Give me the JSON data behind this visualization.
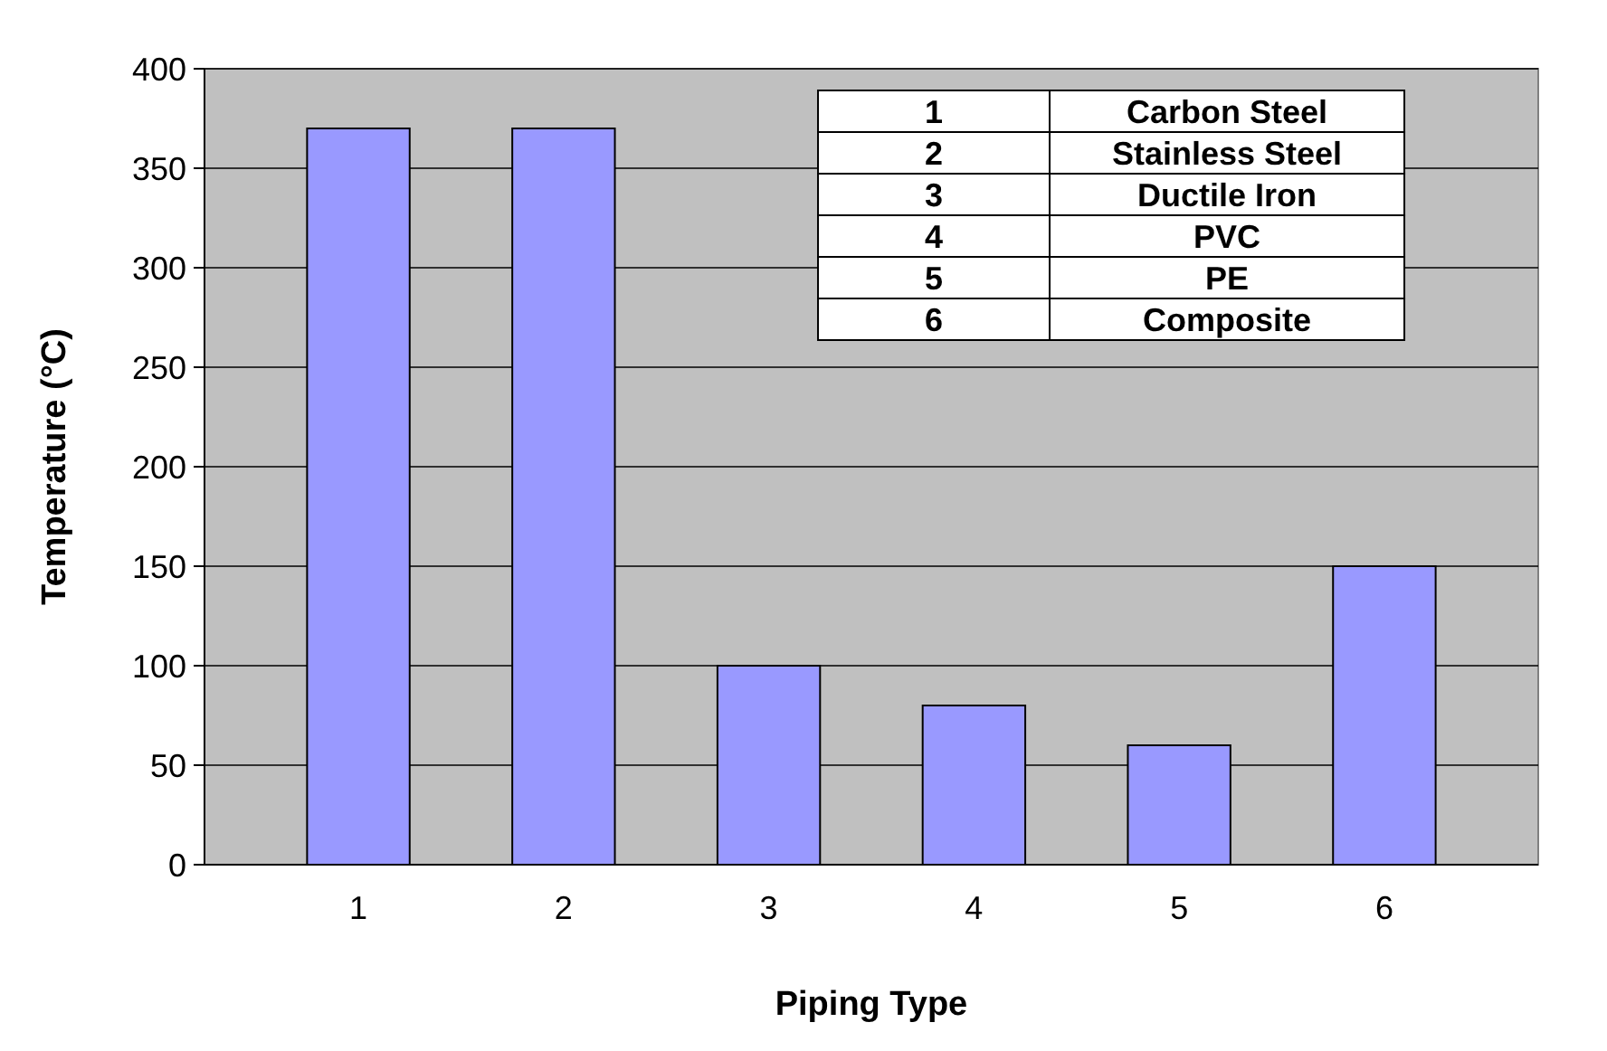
{
  "chart_data": {
    "type": "bar",
    "xlabel": "Piping Type",
    "ylabel": "Temperature (°C)",
    "categories": [
      "1",
      "2",
      "3",
      "4",
      "5",
      "6"
    ],
    "values": [
      370,
      370,
      100,
      80,
      60,
      150
    ],
    "color": "#9999ff",
    "ylim": [
      0,
      400
    ],
    "yticks": [
      0,
      50,
      100,
      150,
      200,
      250,
      300,
      350,
      400
    ],
    "grid": "y",
    "annotations": [
      "1",
      "Carbon Steel",
      "2",
      "Stainless Steel",
      "3",
      "Ductile Iron",
      "4",
      "PVC",
      "5",
      "PE",
      "6",
      "Composite"
    ]
  }
}
